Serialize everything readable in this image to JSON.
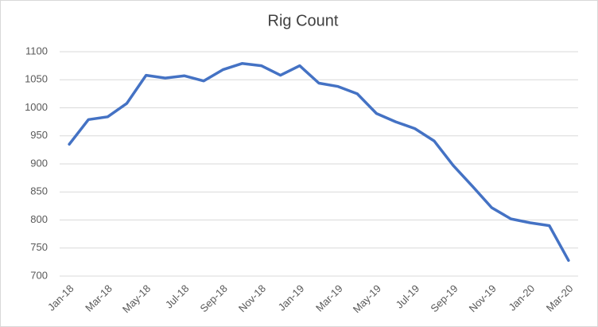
{
  "chart_data": {
    "type": "line",
    "title": "Rig Count",
    "categories": [
      "Jan-18",
      null,
      "Mar-18",
      null,
      "May-18",
      null,
      "Jul-18",
      null,
      "Sep-18",
      null,
      "Nov-18",
      null,
      "Jan-19",
      null,
      "Mar-19",
      null,
      "May-19",
      null,
      "Jul-19",
      null,
      "Sep-19",
      null,
      "Nov-19",
      null,
      "Jan-20",
      null,
      "Mar-20"
    ],
    "values": [
      935,
      979,
      984,
      1008,
      1058,
      1053,
      1057,
      1048,
      1068,
      1079,
      1075,
      1058,
      1075,
      1044,
      1038,
      1025,
      990,
      975,
      963,
      941,
      897,
      860,
      822,
      802,
      795,
      790,
      728
    ],
    "color": "#4472c4",
    "ylim": [
      700,
      1100
    ],
    "yticks": [
      700,
      750,
      800,
      850,
      900,
      950,
      1000,
      1050,
      1100
    ],
    "grid": true
  }
}
